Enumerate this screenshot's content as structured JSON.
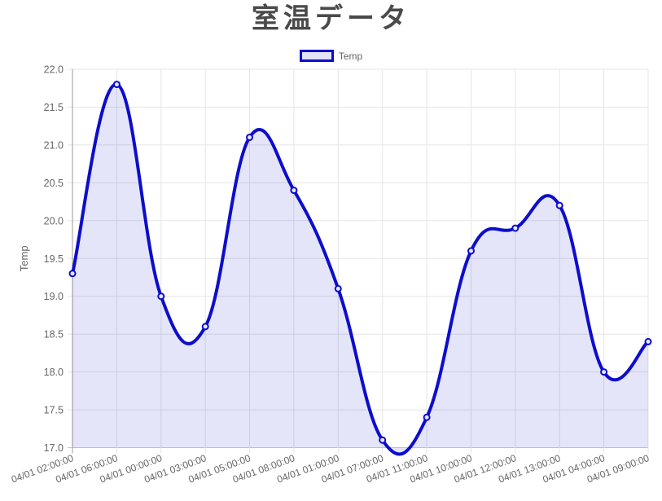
{
  "header": {
    "title": "室温データ"
  },
  "legend": {
    "items": [
      {
        "label": "Temp"
      }
    ]
  },
  "chart_data": {
    "type": "area",
    "title": "室温データ",
    "xlabel": "",
    "ylabel": "Temp",
    "legend_position": "top",
    "grid": true,
    "categories": [
      "04/01 02:00:00",
      "04/01 06:00:00",
      "04/01 00:00:00",
      "04/01 03:00:00",
      "04/01 05:00:00",
      "04/01 08:00:00",
      "04/01 01:00:00",
      "04/01 07:00:00",
      "04/01 11:00:00",
      "04/01 10:00:00",
      "04/01 12:00:00",
      "04/01 13:00:00",
      "04/01 04:00:00",
      "04/01 09:00:00"
    ],
    "series": [
      {
        "name": "Temp",
        "values": [
          19.3,
          21.8,
          19.0,
          18.6,
          21.1,
          20.4,
          19.1,
          17.1,
          17.4,
          19.6,
          19.9,
          20.2,
          18.0,
          18.4
        ]
      }
    ],
    "ylim": [
      17.0,
      22.0
    ],
    "ytick_labels": [
      "22.0",
      "21.5",
      "21.0",
      "20.5",
      "20.0",
      "19.5",
      "19.0",
      "18.5",
      "18.0",
      "17.5",
      "17.0"
    ],
    "colors": {
      "line": "#0d0dcc",
      "area_fill": "rgba(0,0,204,0.10)",
      "point_fill": "#e6e6fa",
      "grid": "#e5e5e5",
      "axis": "#999999",
      "bottom_axis": "#c9c9c9",
      "tick_text": "#666666",
      "title_text": "#4a4a4a",
      "legend_swatch_fill": "#e2e2f9"
    },
    "line_style": "smooth",
    "point_style": "circle"
  }
}
